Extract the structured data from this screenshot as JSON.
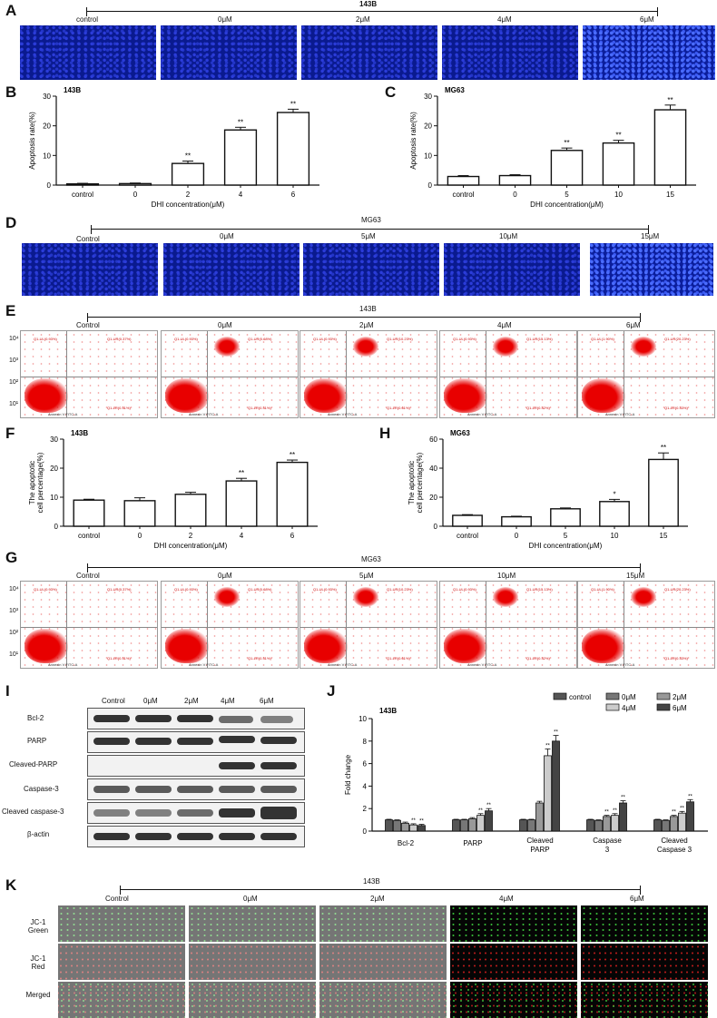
{
  "panel_letters": {
    "a": "A",
    "b": "B",
    "c": "C",
    "d": "D",
    "e": "E",
    "f": "F",
    "h": "H",
    "g": "G",
    "i": "I",
    "j": "J",
    "k": "K"
  },
  "panelA": {
    "cell": "143B",
    "labels": [
      "control",
      "0μM",
      "2μM",
      "4μM",
      "6μM"
    ]
  },
  "panelD": {
    "cell": "MG63",
    "labels": [
      "Control",
      "0μM",
      "5μM",
      "10μM",
      "15μM"
    ]
  },
  "panelE": {
    "cell": "143B",
    "labels": [
      "Control",
      "0μM",
      "2μM",
      "4μM",
      "6μM"
    ]
  },
  "panelG": {
    "cell": "MG63",
    "labels": [
      "Control",
      "0μM",
      "5μM",
      "10μM",
      "15μM"
    ]
  },
  "flow_axis_label": "Annexin V FITC-A",
  "flow_quadrants": [
    {
      "ul": "Q1-UL(0.93%)",
      "ur": "Q1-UR(0.37%)",
      "ll": "Q1-LL",
      "lr": "Q1-LR(0.31%)"
    },
    {
      "ul": "Q1-UL(0.93%)",
      "ur": "Q1-UR(0.68%)",
      "ll": "Q1-LL",
      "lr": "Q1-LR(0.31%)"
    },
    {
      "ul": "Q1-UL(0.93%)",
      "ur": "Q1-UR(10.23%)",
      "ll": "Q1-LL",
      "lr": "Q1-LR(0.61%)"
    },
    {
      "ul": "Q1-UL(0.93%)",
      "ur": "Q1-UR(15.13%)",
      "ll": "Q1-LL",
      "lr": "Q1-LR(0.32%)"
    },
    {
      "ul": "Q1-UL(1.90%)",
      "ur": "Q1-UR(20.23%)",
      "ll": "Q1-LL",
      "lr": "Q1-LR(0.33%)"
    }
  ],
  "flow_y_ticks": [
    "10⁴",
    "10³",
    "10²",
    "10¹"
  ],
  "flow_x_ticks": [
    "10⁰",
    "10¹",
    "10²",
    "10³"
  ],
  "panelI": {
    "columns": [
      "Control",
      "0μM",
      "2μM",
      "4μM",
      "6μM"
    ],
    "rows": [
      "Bcl-2",
      "PARP",
      "Cleaved-PARP",
      "Caspase-3",
      "Cleaved caspase-3",
      "β-actin"
    ]
  },
  "panelK": {
    "cell": "143B",
    "labels": [
      "Control",
      "0μM",
      "2μM",
      "4μM",
      "6μM"
    ],
    "rows": [
      {
        "line1": "JC-1",
        "line2": "Green"
      },
      {
        "line1": "JC-1",
        "line2": "Red"
      },
      {
        "line1": "Merged",
        "line2": ""
      }
    ]
  },
  "chart_data": [
    {
      "id": "B",
      "type": "bar",
      "title": "143B",
      "categories": [
        "control",
        "0",
        "2",
        "4",
        "6"
      ],
      "values": [
        0.4,
        0.5,
        7.3,
        18.6,
        24.5
      ],
      "errors": [
        0.2,
        0.2,
        0.8,
        0.9,
        1.1
      ],
      "significance": [
        "",
        "",
        "**",
        "**",
        "**"
      ],
      "xlabel": "DHI concentration(μM)",
      "ylabel": "Apoptosis rate(%)",
      "ylim": [
        0,
        30
      ],
      "yticks": [
        0,
        10,
        20,
        30
      ]
    },
    {
      "id": "C",
      "type": "bar",
      "title": "MG63",
      "categories": [
        "control",
        "0",
        "5",
        "10",
        "15"
      ],
      "values": [
        2.9,
        3.2,
        11.7,
        14.2,
        25.4
      ],
      "errors": [
        0.3,
        0.3,
        0.8,
        0.9,
        1.6
      ],
      "significance": [
        "",
        "",
        "**",
        "**",
        "**"
      ],
      "xlabel": "DHI concentration(μM)",
      "ylabel": "Apoptosis rate(%)",
      "ylim": [
        0,
        30
      ],
      "yticks": [
        0,
        10,
        20,
        30
      ]
    },
    {
      "id": "F",
      "type": "bar",
      "title": "143B",
      "categories": [
        "control",
        "0",
        "2",
        "4",
        "6"
      ],
      "values": [
        9.0,
        8.8,
        11.0,
        15.6,
        22.0
      ],
      "errors": [
        0.3,
        1.0,
        0.7,
        0.9,
        0.8
      ],
      "significance": [
        "",
        "",
        "",
        "**",
        "**"
      ],
      "xlabel": "DHI concentration(μM)",
      "ylabel": "The apoptotic cell percentage(%)",
      "ylim": [
        0,
        30
      ],
      "yticks": [
        0,
        10,
        20,
        30
      ]
    },
    {
      "id": "H",
      "type": "bar",
      "title": "MG63",
      "categories": [
        "control",
        "0",
        "5",
        "10",
        "15"
      ],
      "values": [
        7.5,
        6.5,
        12.0,
        17.0,
        46.0
      ],
      "errors": [
        0.5,
        0.4,
        0.6,
        1.5,
        4.5
      ],
      "significance": [
        "",
        "",
        "",
        "*",
        "**"
      ],
      "xlabel": "DHI concentration(μM)",
      "ylabel": "The apoptotic cell percentage(%)",
      "ylim": [
        0,
        60
      ],
      "yticks": [
        0,
        20,
        40,
        60
      ]
    },
    {
      "id": "J",
      "type": "bar",
      "title": "143B",
      "categories": [
        "Bcl-2",
        "PARP",
        "Cleaved PARP",
        "Caspase 3",
        "Cleaved Caspase 3"
      ],
      "series": [
        {
          "name": "control",
          "values": [
            1.0,
            1.0,
            1.0,
            1.0,
            1.0
          ],
          "errors": [
            0.05,
            0.05,
            0.05,
            0.05,
            0.05
          ],
          "significance": [
            "",
            "",
            "",
            "",
            ""
          ]
        },
        {
          "name": "0μM",
          "values": [
            0.95,
            1.0,
            1.0,
            0.95,
            0.95
          ],
          "errors": [
            0.05,
            0.05,
            0.05,
            0.05,
            0.05
          ],
          "significance": [
            "",
            "",
            "",
            "",
            ""
          ]
        },
        {
          "name": "2μM",
          "values": [
            0.7,
            1.1,
            2.5,
            1.3,
            1.3
          ],
          "errors": [
            0.1,
            0.1,
            0.15,
            0.1,
            0.1
          ],
          "significance": [
            "",
            "",
            "",
            "**",
            "**"
          ]
        },
        {
          "name": "4μM",
          "values": [
            0.55,
            1.4,
            6.7,
            1.4,
            1.6
          ],
          "errors": [
            0.1,
            0.15,
            0.6,
            0.15,
            0.15
          ],
          "significance": [
            "**",
            "**",
            "**",
            "**",
            "**"
          ]
        },
        {
          "name": "6μM",
          "values": [
            0.5,
            1.8,
            8.0,
            2.5,
            2.6
          ],
          "errors": [
            0.1,
            0.2,
            0.5,
            0.2,
            0.2
          ],
          "significance": [
            "**",
            "**",
            "**",
            "**",
            "**"
          ]
        }
      ],
      "xlabel": "",
      "ylabel": "Fold change",
      "ylim": [
        0,
        10
      ],
      "yticks": [
        0,
        2,
        4,
        6,
        8,
        10
      ],
      "legend": "top-right",
      "colors": [
        "#555555",
        "#777777",
        "#999999",
        "#cccccc",
        "#444444"
      ]
    }
  ]
}
